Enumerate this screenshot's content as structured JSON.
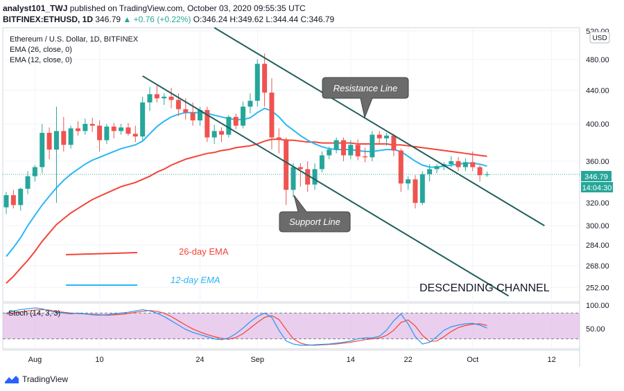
{
  "header": {
    "line1_user": "analyst101_TWJ",
    "line1_rest": "published on TradingView.com, October 03, 2020 09:55:35 UTC",
    "line2_symbol": "BITFINEX:ETHUSD, 1D",
    "line2_last": "346.79",
    "line2_change": "▲ +0.76 (+0.22%)",
    "line2_ohlc": "O:346.24 H:349.62 L:344.44 C:346.79"
  },
  "legend": {
    "title": "Ethereum / U.S. Dollar, 1D, BITFINEX",
    "ema26": "EMA (26, close, 0)",
    "ema12": "EMA (12, close, 0)"
  },
  "currency_button": "USD",
  "annotations": {
    "resistance": "Resistance Line",
    "support": "Support Line",
    "ema26_label": "26-day EMA",
    "ema12_label": "12-day EMA",
    "channel": "DESCENDING CHANNEL"
  },
  "price_tags": {
    "last": "346.79",
    "countdown": "14:04:30"
  },
  "stoch": {
    "label": "Stoch (14, 3, 3)",
    "ticks": [
      "100.00",
      "50.00"
    ]
  },
  "footer": {
    "brand": "TradingView"
  },
  "colors": {
    "up": "#26a69a",
    "down": "#ef5350",
    "ema26": "#f44336",
    "ema12": "#29b6f6",
    "channel": "#1f5f5b",
    "stoch_k": "#2196f3",
    "stoch_d": "#f44336",
    "stoch_band": "#e1bee7"
  },
  "chart_data": {
    "type": "candlestick",
    "symbol": "ETHUSD",
    "x_ticks": [
      "Aug",
      "10",
      "24",
      "Sep",
      "14",
      "22",
      "Oct",
      "12"
    ],
    "y_ticks": [
      "520.00",
      "480.00",
      "440.00",
      "400.00",
      "360.00",
      "320.00",
      "300.00",
      "284.00",
      "268.00",
      "252.00"
    ],
    "y_scale": "log",
    "ylim": [
      242,
      525
    ],
    "candles": [
      {
        "date": "2020-07-28",
        "o": 316,
        "h": 330,
        "l": 310,
        "c": 327
      },
      {
        "date": "2020-07-29",
        "o": 327,
        "h": 332,
        "l": 315,
        "c": 318
      },
      {
        "date": "2020-07-30",
        "o": 318,
        "h": 334,
        "l": 313,
        "c": 333
      },
      {
        "date": "2020-07-31",
        "o": 333,
        "h": 350,
        "l": 328,
        "c": 345
      },
      {
        "date": "2020-08-01",
        "o": 345,
        "h": 356,
        "l": 340,
        "c": 354
      },
      {
        "date": "2020-08-02",
        "o": 354,
        "h": 400,
        "l": 348,
        "c": 390
      },
      {
        "date": "2020-08-03",
        "o": 390,
        "h": 396,
        "l": 362,
        "c": 372
      },
      {
        "date": "2020-08-04",
        "o": 372,
        "h": 420,
        "l": 320,
        "c": 392
      },
      {
        "date": "2020-08-05",
        "o": 392,
        "h": 408,
        "l": 370,
        "c": 377
      },
      {
        "date": "2020-08-06",
        "o": 377,
        "h": 398,
        "l": 373,
        "c": 395
      },
      {
        "date": "2020-08-07",
        "o": 395,
        "h": 403,
        "l": 387,
        "c": 392
      },
      {
        "date": "2020-08-08",
        "o": 392,
        "h": 406,
        "l": 388,
        "c": 400
      },
      {
        "date": "2020-08-09",
        "o": 400,
        "h": 407,
        "l": 391,
        "c": 398
      },
      {
        "date": "2020-08-10",
        "o": 398,
        "h": 404,
        "l": 370,
        "c": 382
      },
      {
        "date": "2020-08-11",
        "o": 382,
        "h": 400,
        "l": 378,
        "c": 397
      },
      {
        "date": "2020-08-12",
        "o": 397,
        "h": 401,
        "l": 384,
        "c": 392
      },
      {
        "date": "2020-08-13",
        "o": 392,
        "h": 400,
        "l": 388,
        "c": 396
      },
      {
        "date": "2020-08-14",
        "o": 396,
        "h": 401,
        "l": 387,
        "c": 389
      },
      {
        "date": "2020-08-15",
        "o": 389,
        "h": 398,
        "l": 380,
        "c": 386
      },
      {
        "date": "2020-08-16",
        "o": 386,
        "h": 432,
        "l": 382,
        "c": 425
      },
      {
        "date": "2020-08-17",
        "o": 425,
        "h": 444,
        "l": 415,
        "c": 435
      },
      {
        "date": "2020-08-18",
        "o": 435,
        "h": 446,
        "l": 425,
        "c": 430
      },
      {
        "date": "2020-08-19",
        "o": 430,
        "h": 436,
        "l": 422,
        "c": 432
      },
      {
        "date": "2020-08-20",
        "o": 432,
        "h": 443,
        "l": 418,
        "c": 428
      },
      {
        "date": "2020-08-21",
        "o": 428,
        "h": 436,
        "l": 409,
        "c": 417
      },
      {
        "date": "2020-08-22",
        "o": 417,
        "h": 430,
        "l": 405,
        "c": 413
      },
      {
        "date": "2020-08-23",
        "o": 413,
        "h": 425,
        "l": 398,
        "c": 404
      },
      {
        "date": "2020-08-24",
        "o": 404,
        "h": 420,
        "l": 398,
        "c": 416
      },
      {
        "date": "2020-08-25",
        "o": 416,
        "h": 420,
        "l": 380,
        "c": 385
      },
      {
        "date": "2020-08-26",
        "o": 385,
        "h": 399,
        "l": 378,
        "c": 392
      },
      {
        "date": "2020-08-27",
        "o": 392,
        "h": 396,
        "l": 380,
        "c": 388
      },
      {
        "date": "2020-08-28",
        "o": 388,
        "h": 410,
        "l": 385,
        "c": 408
      },
      {
        "date": "2020-08-29",
        "o": 408,
        "h": 412,
        "l": 394,
        "c": 398
      },
      {
        "date": "2020-08-30",
        "o": 398,
        "h": 426,
        "l": 395,
        "c": 420
      },
      {
        "date": "2020-08-31",
        "o": 420,
        "h": 436,
        "l": 412,
        "c": 427
      },
      {
        "date": "2020-09-01",
        "o": 427,
        "h": 480,
        "l": 420,
        "c": 474
      },
      {
        "date": "2020-09-02",
        "o": 474,
        "h": 488,
        "l": 420,
        "c": 437
      },
      {
        "date": "2020-09-03",
        "o": 437,
        "h": 455,
        "l": 372,
        "c": 385
      },
      {
        "date": "2020-09-04",
        "o": 385,
        "h": 395,
        "l": 368,
        "c": 383
      },
      {
        "date": "2020-09-05",
        "o": 383,
        "h": 385,
        "l": 318,
        "c": 332
      },
      {
        "date": "2020-09-06",
        "o": 332,
        "h": 358,
        "l": 325,
        "c": 354
      },
      {
        "date": "2020-09-07",
        "o": 354,
        "h": 358,
        "l": 335,
        "c": 352
      },
      {
        "date": "2020-09-08",
        "o": 352,
        "h": 360,
        "l": 330,
        "c": 337
      },
      {
        "date": "2020-09-09",
        "o": 337,
        "h": 358,
        "l": 332,
        "c": 352
      },
      {
        "date": "2020-09-10",
        "o": 352,
        "h": 370,
        "l": 349,
        "c": 366
      },
      {
        "date": "2020-09-11",
        "o": 366,
        "h": 375,
        "l": 362,
        "c": 372
      },
      {
        "date": "2020-09-12",
        "o": 372,
        "h": 385,
        "l": 368,
        "c": 382
      },
      {
        "date": "2020-09-13",
        "o": 382,
        "h": 385,
        "l": 360,
        "c": 366
      },
      {
        "date": "2020-09-14",
        "o": 366,
        "h": 382,
        "l": 362,
        "c": 377
      },
      {
        "date": "2020-09-15",
        "o": 377,
        "h": 383,
        "l": 361,
        "c": 365
      },
      {
        "date": "2020-09-16",
        "o": 365,
        "h": 374,
        "l": 359,
        "c": 364
      },
      {
        "date": "2020-09-17",
        "o": 364,
        "h": 392,
        "l": 360,
        "c": 388
      },
      {
        "date": "2020-09-18",
        "o": 388,
        "h": 392,
        "l": 377,
        "c": 384
      },
      {
        "date": "2020-09-19",
        "o": 384,
        "h": 390,
        "l": 376,
        "c": 387
      },
      {
        "date": "2020-09-20",
        "o": 387,
        "h": 389,
        "l": 365,
        "c": 371
      },
      {
        "date": "2020-09-21",
        "o": 371,
        "h": 373,
        "l": 330,
        "c": 338
      },
      {
        "date": "2020-09-22",
        "o": 338,
        "h": 345,
        "l": 332,
        "c": 342
      },
      {
        "date": "2020-09-23",
        "o": 342,
        "h": 346,
        "l": 315,
        "c": 320
      },
      {
        "date": "2020-09-24",
        "o": 320,
        "h": 350,
        "l": 318,
        "c": 347
      },
      {
        "date": "2020-09-25",
        "o": 347,
        "h": 357,
        "l": 340,
        "c": 352
      },
      {
        "date": "2020-09-26",
        "o": 352,
        "h": 357,
        "l": 348,
        "c": 355
      },
      {
        "date": "2020-09-27",
        "o": 355,
        "h": 359,
        "l": 351,
        "c": 357
      },
      {
        "date": "2020-09-28",
        "o": 357,
        "h": 365,
        "l": 354,
        "c": 360
      },
      {
        "date": "2020-09-29",
        "o": 360,
        "h": 364,
        "l": 350,
        "c": 354
      },
      {
        "date": "2020-09-30",
        "o": 354,
        "h": 363,
        "l": 350,
        "c": 359
      },
      {
        "date": "2020-10-01",
        "o": 359,
        "h": 370,
        "l": 350,
        "c": 354
      },
      {
        "date": "2020-10-02",
        "o": 354,
        "h": 356,
        "l": 340,
        "c": 346
      },
      {
        "date": "2020-10-03",
        "o": 346.24,
        "h": 349.62,
        "l": 344.44,
        "c": 346.79
      }
    ],
    "series": [
      {
        "name": "EMA (26, close, 0)",
        "values": [
          255,
          260,
          266,
          272,
          279,
          287,
          294,
          301,
          306,
          311,
          315,
          319,
          323,
          326,
          329,
          332,
          335,
          337,
          339,
          342,
          345,
          349,
          352,
          356,
          359,
          362,
          364,
          366,
          368,
          369,
          371,
          372,
          374,
          375,
          376,
          378,
          381,
          383,
          383,
          382,
          382,
          381,
          380,
          380,
          379,
          379,
          379,
          379,
          379,
          378,
          378,
          378,
          378,
          378,
          377,
          377,
          376,
          375,
          374,
          373,
          372,
          371,
          370,
          369,
          368,
          367,
          366,
          365
        ]
      },
      {
        "name": "EMA (12, close, 0)",
        "values": [
          275,
          282,
          290,
          300,
          309,
          318,
          326,
          334,
          341,
          347,
          352,
          357,
          361,
          364,
          367,
          370,
          373,
          375,
          377,
          381,
          389,
          397,
          403,
          408,
          411,
          413,
          413,
          413,
          412,
          410,
          408,
          406,
          405,
          405,
          407,
          413,
          418,
          415,
          408,
          399,
          393,
          387,
          382,
          378,
          375,
          373,
          372,
          372,
          372,
          371,
          370,
          370,
          371,
          372,
          372,
          370,
          365,
          360,
          356,
          354,
          354,
          355,
          356,
          357,
          358,
          358,
          357,
          355
        ]
      },
      {
        "name": "Stoch %K",
        "values": [
          80,
          85,
          88,
          90,
          92,
          90,
          85,
          82,
          80,
          78,
          80,
          78,
          76,
          75,
          76,
          78,
          80,
          82,
          85,
          88,
          85,
          80,
          72,
          62,
          52,
          42,
          35,
          30,
          25,
          20,
          18,
          22,
          32,
          45,
          60,
          72,
          80,
          70,
          40,
          15,
          8,
          5,
          5,
          6,
          7,
          8,
          10,
          12,
          15,
          20,
          22,
          22,
          26,
          40,
          62,
          78,
          55,
          25,
          8,
          12,
          25,
          40,
          48,
          52,
          55,
          56,
          52,
          45
        ]
      },
      {
        "name": "Stoch %D",
        "values": [
          78,
          80,
          83,
          85,
          87,
          88,
          87,
          84,
          82,
          80,
          79,
          78,
          77,
          76,
          75,
          76,
          77,
          79,
          82,
          84,
          86,
          84,
          80,
          72,
          62,
          52,
          43,
          36,
          30,
          25,
          21,
          19,
          23,
          32,
          45,
          58,
          70,
          74,
          65,
          42,
          20,
          10,
          6,
          5,
          6,
          7,
          8,
          10,
          12,
          15,
          18,
          20,
          22,
          28,
          40,
          58,
          64,
          50,
          28,
          14,
          15,
          25,
          37,
          46,
          51,
          54,
          55,
          51
        ]
      }
    ],
    "stoch_bands": [
      20,
      80
    ],
    "drawings": [
      {
        "name": "Resistance Line",
        "points": [
          [
            "2020-08-26",
            525
          ],
          [
            "2020-10-11",
            300
          ]
        ]
      },
      {
        "name": "Support Line",
        "points": [
          [
            "2020-08-16",
            458
          ],
          [
            "2020-10-06",
            246
          ]
        ]
      }
    ],
    "title": "Ethereum / U.S. Dollar, 1D, BITFINEX"
  }
}
